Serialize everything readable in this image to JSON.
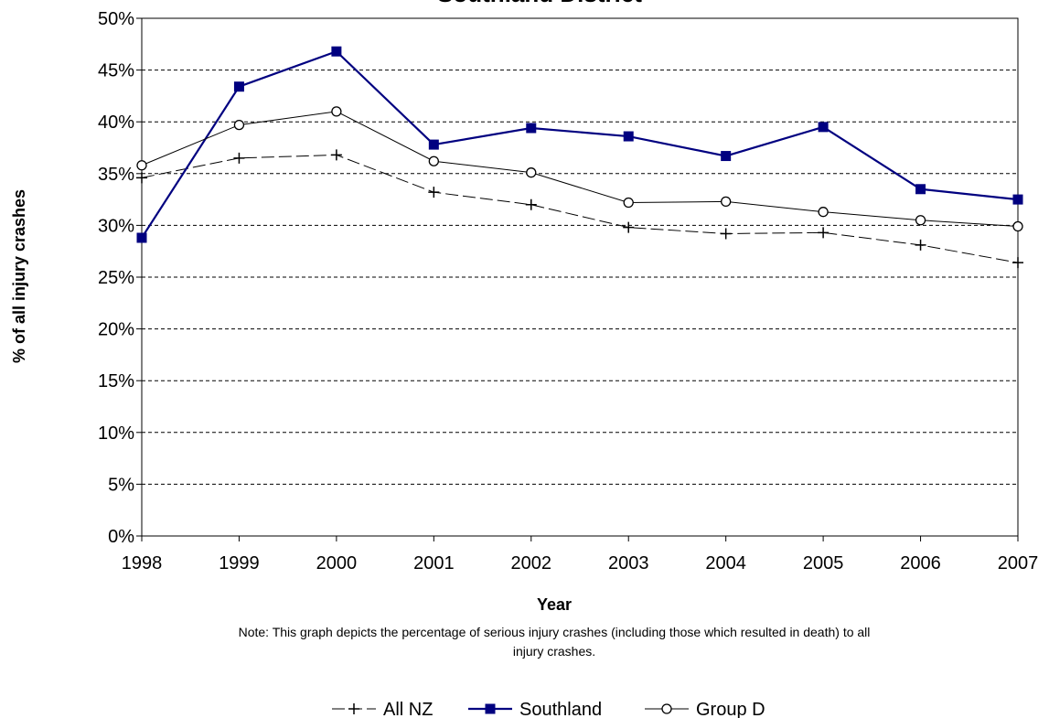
{
  "chart_data": {
    "type": "line",
    "title": "Southland District",
    "xlabel": "Year",
    "ylabel": "% of all injury crashes",
    "categories": [
      "1998",
      "1999",
      "2000",
      "2001",
      "2002",
      "2003",
      "2004",
      "2005",
      "2006",
      "2007"
    ],
    "ylim": [
      0,
      50
    ],
    "yticks": [
      "0%",
      "5%",
      "10%",
      "15%",
      "20%",
      "25%",
      "30%",
      "35%",
      "40%",
      "45%",
      "50%"
    ],
    "grid": true,
    "legend_position": "bottom",
    "series": [
      {
        "name": "All NZ",
        "values": [
          34.6,
          36.5,
          36.8,
          33.2,
          32.0,
          29.8,
          29.2,
          29.3,
          28.1,
          26.4
        ],
        "color": "#000000",
        "marker": "plus",
        "line_style": "dashed"
      },
      {
        "name": "Southland",
        "values": [
          28.8,
          43.4,
          46.8,
          37.8,
          39.4,
          38.6,
          36.7,
          39.5,
          33.5,
          32.5
        ],
        "color": "#000080",
        "marker": "square",
        "line_style": "solid"
      },
      {
        "name": "Group D",
        "values": [
          35.8,
          39.7,
          41.0,
          36.2,
          35.1,
          32.2,
          32.3,
          31.3,
          30.5,
          29.9
        ],
        "color": "#000000",
        "marker": "circle",
        "line_style": "solid"
      }
    ],
    "note": "Note: This graph depicts the percentage of serious injury crashes (including those which resulted in death) to all injury crashes.",
    "note_lines": [
      "Note: This graph depicts the percentage of serious injury crashes (including those which resulted in death) to all",
      "injury crashes."
    ]
  }
}
